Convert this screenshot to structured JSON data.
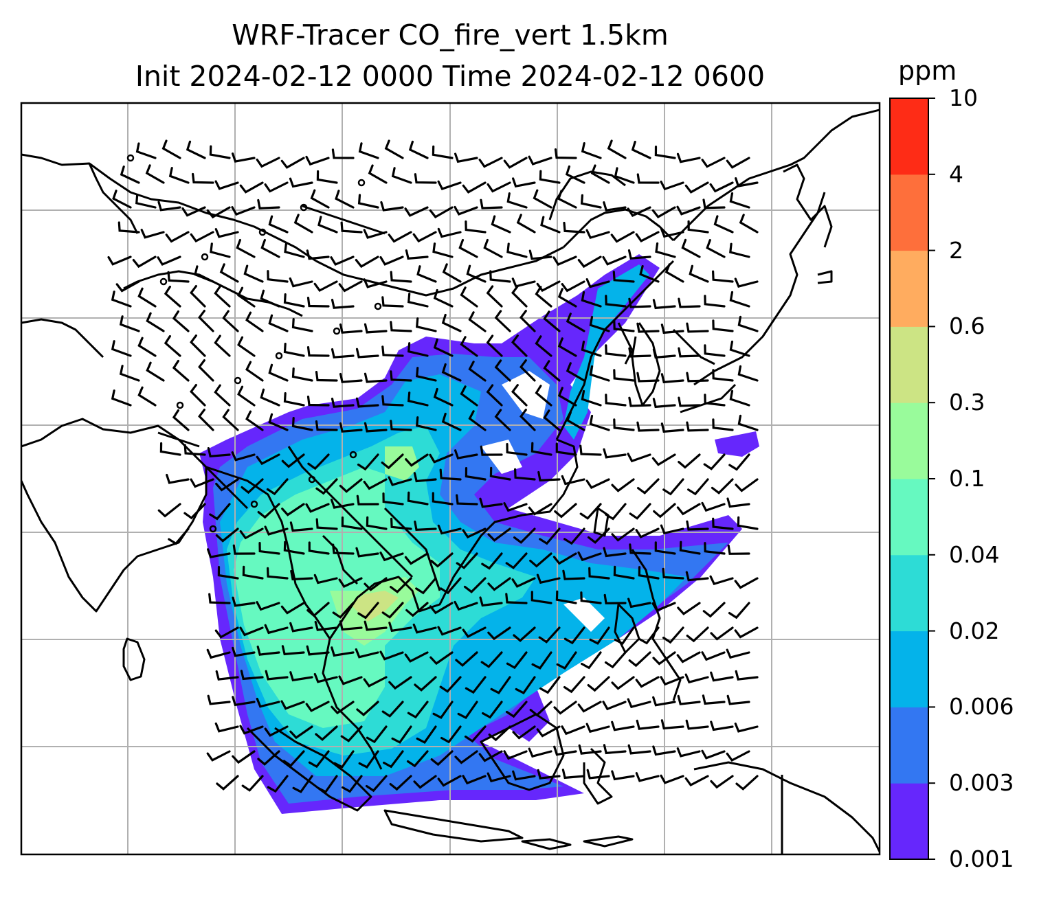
{
  "title_line_1": "WRF-Tracer CO_fire_vert 1.5km",
  "title_line_2": "Init 2024-02-12 0000 Time 2024-02-12 0600",
  "chart_data": {
    "type": "heatmap",
    "title": "WRF-Tracer CO_fire_vert 1.5km",
    "subtitle": "Init 2024-02-12 0000 Time 2024-02-12 0600",
    "units": "ppm",
    "grid": true,
    "legend": "colorbar-right",
    "colorbar": {
      "levels": [
        "0.001",
        "0.003",
        "0.006",
        "0.02",
        "0.04",
        "0.1",
        "0.3",
        "0.6",
        "2",
        "4",
        "10"
      ],
      "colors": [
        "#6627fc",
        "#3377f2",
        "#04b3ea",
        "#2ddcd6",
        "#66f9c0",
        "#99fb9b",
        "#cce484",
        "#ffac5f",
        "#fe6f3b",
        "#fe2c16"
      ]
    },
    "wind_barbs": "black barbs over domain",
    "map_features": "coastlines, country borders"
  }
}
